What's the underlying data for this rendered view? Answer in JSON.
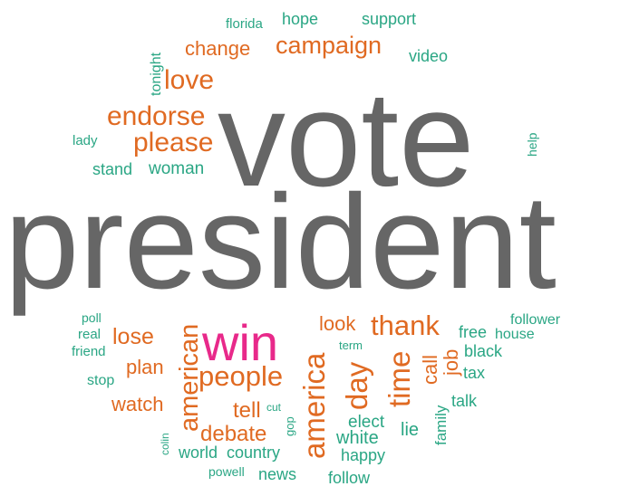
{
  "colors": {
    "large": "#666666",
    "medium": "#e06a22",
    "small": "#2aa684",
    "highlight": "#e8298a"
  },
  "words": [
    {
      "text": "vote",
      "weight": 10,
      "color": "large"
    },
    {
      "text": "president",
      "weight": 10,
      "color": "large"
    },
    {
      "text": "win",
      "weight": 6,
      "color": "highlight"
    },
    {
      "text": "campaign",
      "weight": 4,
      "color": "medium"
    },
    {
      "text": "endorse",
      "weight": 4,
      "color": "medium"
    },
    {
      "text": "please",
      "weight": 4,
      "color": "medium"
    },
    {
      "text": "love",
      "weight": 4,
      "color": "medium"
    },
    {
      "text": "change",
      "weight": 3,
      "color": "medium"
    },
    {
      "text": "thank",
      "weight": 4,
      "color": "medium"
    },
    {
      "text": "people",
      "weight": 4,
      "color": "medium"
    },
    {
      "text": "america",
      "weight": 4,
      "color": "medium"
    },
    {
      "text": "day",
      "weight": 4,
      "color": "medium"
    },
    {
      "text": "time",
      "weight": 4,
      "color": "medium"
    },
    {
      "text": "american",
      "weight": 4,
      "color": "medium"
    },
    {
      "text": "lose",
      "weight": 3,
      "color": "medium"
    },
    {
      "text": "look",
      "weight": 3,
      "color": "medium"
    },
    {
      "text": "plan",
      "weight": 3,
      "color": "medium"
    },
    {
      "text": "debate",
      "weight": 3,
      "color": "medium"
    },
    {
      "text": "watch",
      "weight": 3,
      "color": "medium"
    },
    {
      "text": "tell",
      "weight": 3,
      "color": "medium"
    },
    {
      "text": "call",
      "weight": 3,
      "color": "medium"
    },
    {
      "text": "job",
      "weight": 3,
      "color": "medium"
    },
    {
      "text": "woman",
      "weight": 2,
      "color": "small"
    },
    {
      "text": "florida",
      "weight": 1,
      "color": "small"
    },
    {
      "text": "hope",
      "weight": 2,
      "color": "small"
    },
    {
      "text": "support",
      "weight": 2,
      "color": "small"
    },
    {
      "text": "video",
      "weight": 2,
      "color": "small"
    },
    {
      "text": "tonight",
      "weight": 2,
      "color": "small"
    },
    {
      "text": "lady",
      "weight": 1,
      "color": "small"
    },
    {
      "text": "stand",
      "weight": 2,
      "color": "small"
    },
    {
      "text": "help",
      "weight": 1,
      "color": "small"
    },
    {
      "text": "poll",
      "weight": 1,
      "color": "small"
    },
    {
      "text": "real",
      "weight": 1,
      "color": "small"
    },
    {
      "text": "friend",
      "weight": 1,
      "color": "small"
    },
    {
      "text": "stop",
      "weight": 1,
      "color": "small"
    },
    {
      "text": "follower",
      "weight": 1,
      "color": "small"
    },
    {
      "text": "free",
      "weight": 2,
      "color": "small"
    },
    {
      "text": "house",
      "weight": 1,
      "color": "small"
    },
    {
      "text": "black",
      "weight": 2,
      "color": "small"
    },
    {
      "text": "tax",
      "weight": 2,
      "color": "small"
    },
    {
      "text": "talk",
      "weight": 2,
      "color": "small"
    },
    {
      "text": "term",
      "weight": 1,
      "color": "small"
    },
    {
      "text": "cut",
      "weight": 1,
      "color": "small"
    },
    {
      "text": "gop",
      "weight": 1,
      "color": "small"
    },
    {
      "text": "elect",
      "weight": 2,
      "color": "small"
    },
    {
      "text": "white",
      "weight": 2,
      "color": "small"
    },
    {
      "text": "lie",
      "weight": 2,
      "color": "small"
    },
    {
      "text": "family",
      "weight": 2,
      "color": "small"
    },
    {
      "text": "happy",
      "weight": 2,
      "color": "small"
    },
    {
      "text": "follow",
      "weight": 2,
      "color": "small"
    },
    {
      "text": "world",
      "weight": 2,
      "color": "small"
    },
    {
      "text": "country",
      "weight": 2,
      "color": "small"
    },
    {
      "text": "colin",
      "weight": 1,
      "color": "small"
    },
    {
      "text": "powell",
      "weight": 1,
      "color": "small"
    },
    {
      "text": "news",
      "weight": 2,
      "color": "small"
    }
  ]
}
